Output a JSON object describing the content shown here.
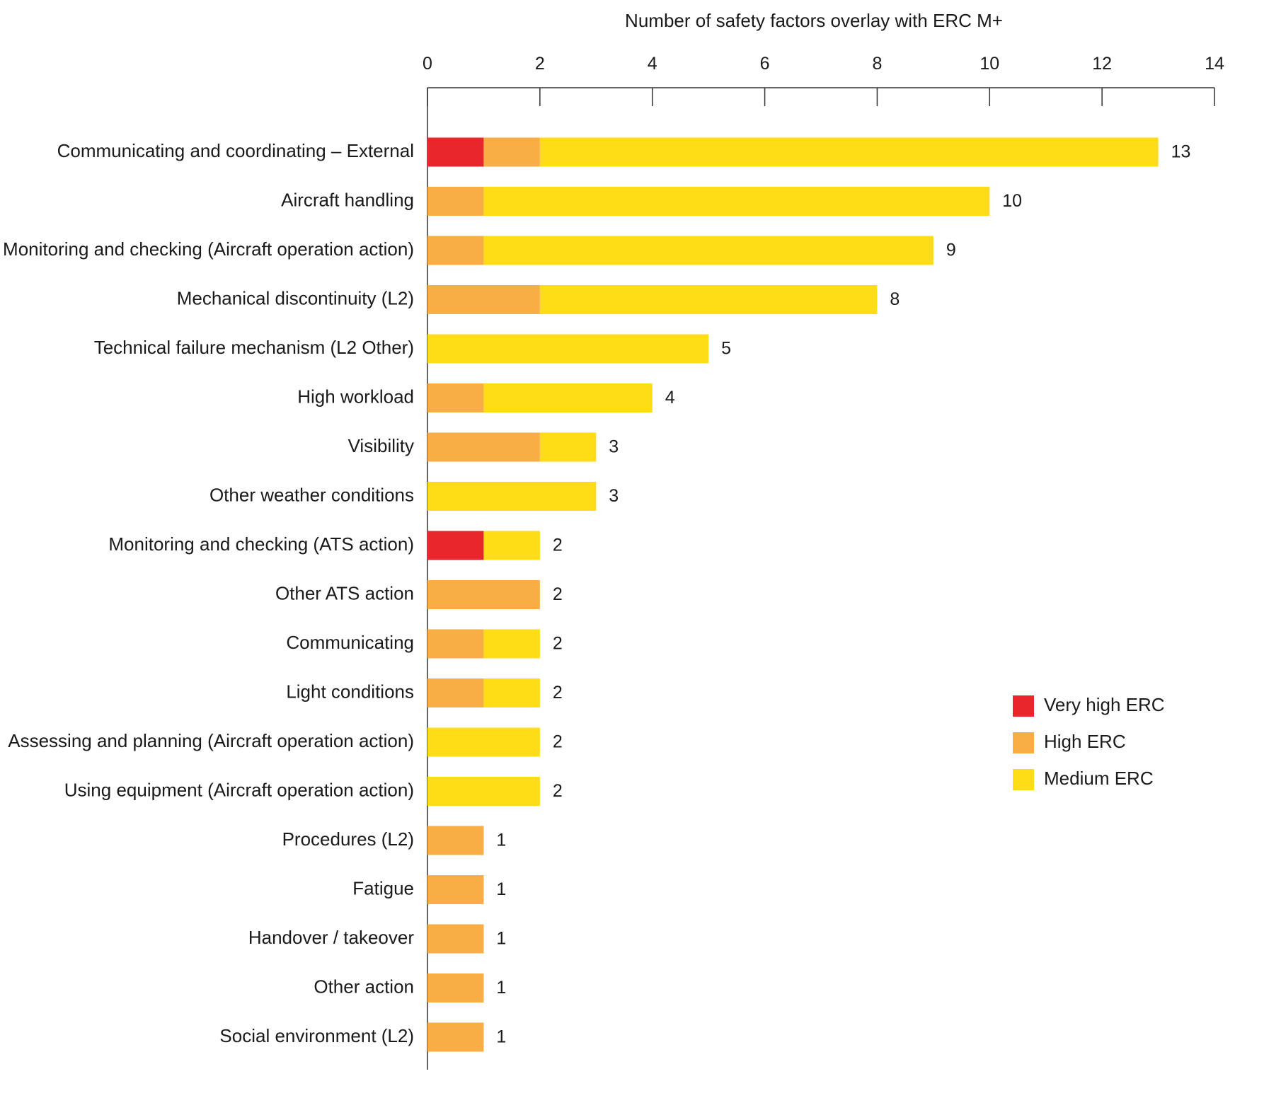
{
  "chart_data": {
    "type": "bar",
    "orientation": "horizontal",
    "stacked": true,
    "title": "",
    "xlabel": "Number of safety factors overlay with ERC M+",
    "ylabel": "",
    "xlim": [
      0,
      14
    ],
    "xticks": [
      0,
      2,
      4,
      6,
      8,
      10,
      12,
      14
    ],
    "x_axis_position": "top",
    "grid": false,
    "legend_position": "right",
    "categories": [
      "Communicating and coordinating – External",
      "Aircraft handling",
      "Monitoring and checking (Aircraft operation action)",
      "Mechanical discontinuity (L2)",
      "Technical failure mechanism (L2 Other)",
      "High workload",
      "Visibility",
      "Other weather conditions",
      "Monitoring and checking (ATS action)",
      "Other ATS action",
      "Communicating",
      "Light conditions",
      "Assessing and planning (Aircraft operation action)",
      "Using equipment (Aircraft operation action)",
      "Procedures (L2)",
      "Fatigue",
      "Handover / takeover",
      "Other action",
      "Social environment (L2)"
    ],
    "series": [
      {
        "name": "Very high ERC",
        "color": "#e8262b",
        "values": [
          1,
          0,
          0,
          0,
          0,
          0,
          0,
          0,
          1,
          0,
          0,
          0,
          0,
          0,
          0,
          0,
          0,
          0,
          0
        ]
      },
      {
        "name": "High ERC",
        "color": "#f8ae45",
        "values": [
          1,
          1,
          1,
          2,
          0,
          1,
          2,
          0,
          0,
          2,
          1,
          1,
          0,
          0,
          1,
          1,
          1,
          1,
          1
        ]
      },
      {
        "name": "Medium ERC",
        "color": "#fedd17",
        "values": [
          11,
          9,
          8,
          6,
          5,
          3,
          1,
          3,
          1,
          0,
          1,
          1,
          2,
          2,
          0,
          0,
          0,
          0,
          0
        ]
      }
    ],
    "totals": [
      13,
      10,
      9,
      8,
      5,
      4,
      3,
      3,
      2,
      2,
      2,
      2,
      2,
      2,
      1,
      1,
      1,
      1,
      1
    ]
  }
}
